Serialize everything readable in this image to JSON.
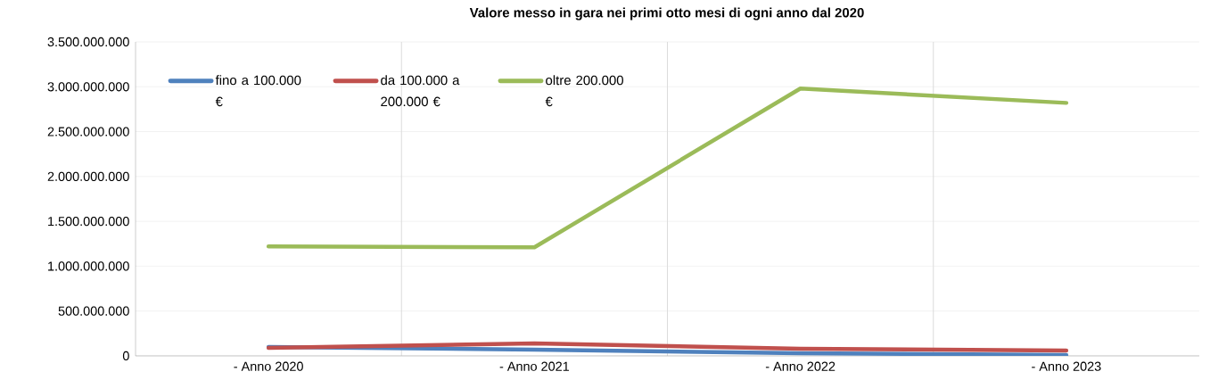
{
  "chart_data": {
    "type": "line",
    "title": "Valore messo in gara nei primi otto mesi di ogni anno dal 2020",
    "categories": [
      "- Anno 2020",
      "- Anno 2021",
      "- Anno 2022",
      "- Anno 2023"
    ],
    "series": [
      {
        "name": "fino a 100.000 €",
        "color": "#4f81bd",
        "values": [
          100000000,
          70000000,
          30000000,
          10000000
        ]
      },
      {
        "name": "da 100.000 a 200.000 €",
        "color": "#c0504d",
        "values": [
          90000000,
          140000000,
          80000000,
          60000000
        ]
      },
      {
        "name": "oltre 200.000 €",
        "color": "#9bbb59",
        "values": [
          1220000000,
          1210000000,
          2980000000,
          2820000000
        ]
      }
    ],
    "ylim": [
      0,
      3500000000
    ],
    "yticks": [
      {
        "value": 0,
        "label": "0"
      },
      {
        "value": 500000000,
        "label": "500.000.000"
      },
      {
        "value": 1000000000,
        "label": "1.000.000.000"
      },
      {
        "value": 1500000000,
        "label": "1.500.000.000"
      },
      {
        "value": 2000000000,
        "label": "2.000.000.000"
      },
      {
        "value": 2500000000,
        "label": "2.500.000.000"
      },
      {
        "value": 3000000000,
        "label": "3.000.000.000"
      },
      {
        "value": 3500000000,
        "label": "3.500.000.000"
      }
    ],
    "grid": true,
    "legend": "top left",
    "marker": "none",
    "line_style": "solid"
  }
}
